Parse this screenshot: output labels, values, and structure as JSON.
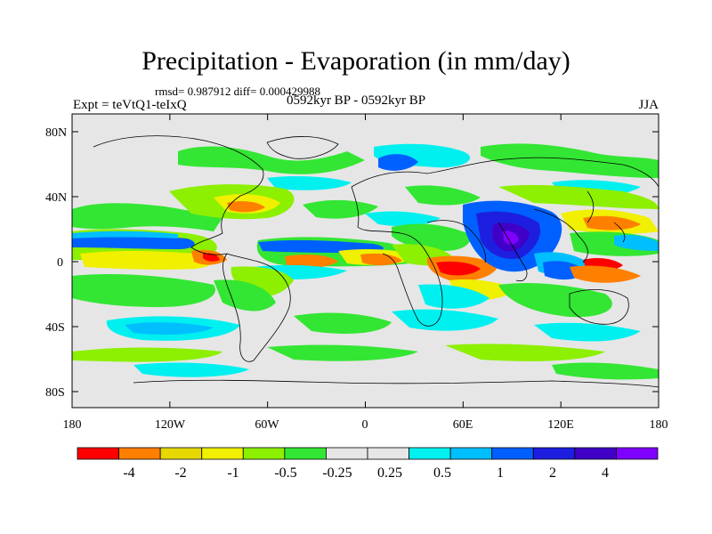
{
  "title": "Precipitation - Evaporation (in mm/day)",
  "stats_line": "rmsd= 0.987912 diff= 0.000429988",
  "period": "0592kyr BP - 0592kyr BP",
  "experiment": "Expt = teVtQ1-teIxQ",
  "season": "JJA",
  "lat_ticks": [
    "80N",
    "40N",
    "0",
    "40S",
    "80S"
  ],
  "lon_ticks": [
    "180",
    "120W",
    "60W",
    "0",
    "60E",
    "120E",
    "180"
  ],
  "colorbar": {
    "colors": [
      "#ff0000",
      "#ff8000",
      "#e6d800",
      "#f0f000",
      "#8cf000",
      "#33e633",
      "#e6e6e6",
      "#e6e6e6",
      "#00f0f0",
      "#00bfff",
      "#0060ff",
      "#1e1ee0",
      "#4000c8",
      "#8000ff"
    ],
    "labels": [
      "-4",
      "-2",
      "-1",
      "-0.5",
      "-0.25",
      "0.25",
      "0.5",
      "1",
      "2",
      "4"
    ]
  },
  "palette": {
    "neutral": "#e6e6e6",
    "cyan": "#00f0f0",
    "lightblue": "#00bfff",
    "blue": "#0060ff",
    "darkblue": "#1e1ee0",
    "violet": "#4000c8",
    "green": "#33e633",
    "lightgreen": "#8cf000",
    "yellow": "#f0f000",
    "orange": "#ff8000",
    "red": "#ff0000"
  }
}
